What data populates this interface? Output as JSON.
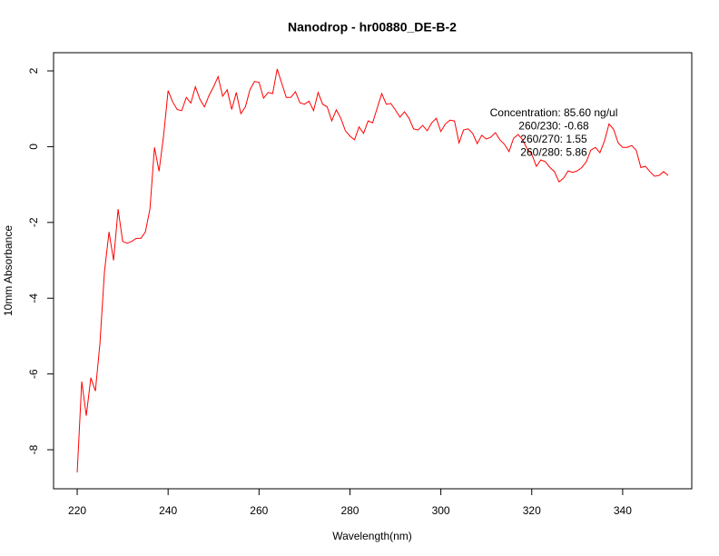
{
  "chart_data": {
    "type": "line",
    "title": "Nanodrop - hr00880_DE-B-2",
    "xlabel": "Wavelength(nm)",
    "ylabel": "10mm Absorbance",
    "annotations": [
      "Concentration: 85.60 ng/ul",
      "260/230: -0.68",
      "260/270: 1.55",
      "260/280: 5.86"
    ],
    "x": [
      220,
      221,
      222,
      223,
      224,
      225,
      226,
      227,
      228,
      229,
      230,
      231,
      232,
      233,
      234,
      235,
      236,
      237,
      238,
      239,
      240,
      241,
      242,
      243,
      244,
      245,
      246,
      247,
      248,
      249,
      250,
      251,
      252,
      253,
      254,
      255,
      256,
      257,
      258,
      259,
      260,
      261,
      262,
      263,
      264,
      265,
      266,
      267,
      268,
      269,
      270,
      271,
      272,
      273,
      274,
      275,
      276,
      277,
      278,
      279,
      280,
      281,
      282,
      283,
      284,
      285,
      286,
      287,
      288,
      289,
      290,
      291,
      292,
      293,
      294,
      295,
      296,
      297,
      298,
      299,
      300,
      301,
      302,
      303,
      304,
      305,
      306,
      307,
      308,
      309,
      310,
      311,
      312,
      313,
      314,
      315,
      316,
      317,
      318,
      319,
      320,
      321,
      322,
      323,
      324,
      325,
      326,
      327,
      328,
      329,
      330,
      331,
      332,
      333,
      334,
      335,
      336,
      337,
      338,
      339,
      340,
      341,
      342,
      343,
      344,
      345,
      346,
      347,
      348,
      349,
      350
    ],
    "series": [
      {
        "name": "Absorbance",
        "color": "#ff0000",
        "values": [
          -8.6,
          -6.2,
          -7.1,
          -6.1,
          -6.45,
          -5.2,
          -3.3,
          -2.25,
          -3.0,
          -1.65,
          -2.5,
          -2.55,
          -2.5,
          -2.42,
          -2.42,
          -2.25,
          -1.65,
          -0.02,
          -0.65,
          0.28,
          1.48,
          1.18,
          0.98,
          0.95,
          1.3,
          1.15,
          1.58,
          1.25,
          1.05,
          1.35,
          1.58,
          1.85,
          1.33,
          1.5,
          0.98,
          1.43,
          0.87,
          1.05,
          1.5,
          1.72,
          1.7,
          1.28,
          1.43,
          1.4,
          2.05,
          1.67,
          1.3,
          1.3,
          1.45,
          1.16,
          1.12,
          1.2,
          0.95,
          1.43,
          1.12,
          1.05,
          0.68,
          0.97,
          0.75,
          0.42,
          0.28,
          0.18,
          0.52,
          0.35,
          0.68,
          0.63,
          1.02,
          1.4,
          1.12,
          1.14,
          0.97,
          0.78,
          0.92,
          0.75,
          0.47,
          0.44,
          0.56,
          0.42,
          0.63,
          0.75,
          0.4,
          0.6,
          0.7,
          0.68,
          0.1,
          0.44,
          0.47,
          0.35,
          0.08,
          0.3,
          0.2,
          0.25,
          0.37,
          0.18,
          0.06,
          -0.13,
          0.22,
          0.32,
          0.18,
          -0.06,
          -0.2,
          -0.52,
          -0.35,
          -0.4,
          -0.55,
          -0.66,
          -0.93,
          -0.83,
          -0.64,
          -0.68,
          -0.64,
          -0.55,
          -0.4,
          -0.09,
          -0.02,
          -0.16,
          0.15,
          0.6,
          0.46,
          0.1,
          -0.02,
          -0.02,
          0.03,
          -0.1,
          -0.55,
          -0.52,
          -0.66,
          -0.78,
          -0.76,
          -0.66,
          -0.76
        ]
      }
    ],
    "xlim": [
      214.8,
      355.2
    ],
    "xticks": [
      220,
      240,
      260,
      280,
      300,
      320,
      340
    ],
    "ylim": [
      -9.03,
      2.48
    ],
    "yticks": [
      -8,
      -6,
      -4,
      -2,
      0,
      2
    ],
    "grid": false
  }
}
